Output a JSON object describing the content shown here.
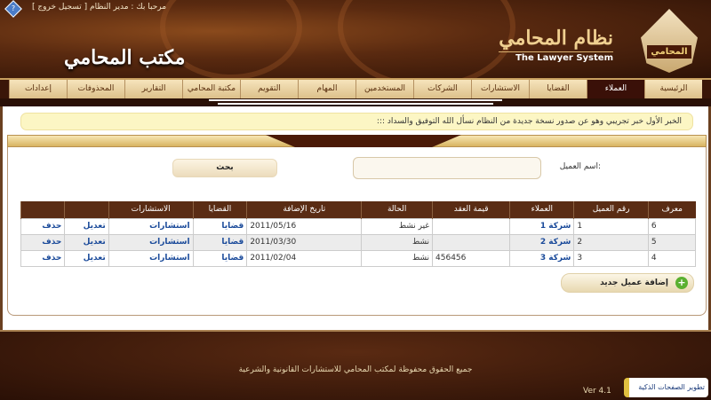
{
  "header": {
    "welcome": "مرحبا بك : مدير النظام [ تسجيل خروج ]",
    "help_icon": "question-icon",
    "office_title": "مكتب المحامي",
    "brand_ar": "نظام المحامي",
    "brand_en": "The Lawyer System",
    "logo_text": "المحامي"
  },
  "nav": {
    "active": "العملاء",
    "items": [
      "الرئيسية",
      "العملاء",
      "القضايا",
      "الاستشارات",
      "الشركات",
      "المستخدمين",
      "المهام",
      "التقويم",
      "مكتبة المحامي",
      "التقارير",
      "المحذوفات",
      "إعدادات"
    ]
  },
  "news": "الخبر الأول خبر تجريبي وهو عن صدور نسخة جديدة من النظام نسأل الله التوفيق والسداد :::",
  "search": {
    "label": "اسم العميل:",
    "value": "",
    "button": "بحث"
  },
  "table": {
    "headers": [
      "معرف",
      "رقم العميل",
      "العملاء",
      "قيمة العقد",
      "الحالة",
      "تاريخ الإضافة",
      "القضايا",
      "الاستشارات",
      "",
      ""
    ],
    "rows": [
      [
        "6",
        "1",
        "شركة 1",
        "",
        "غير نشط",
        "2011/05/16",
        "قضايا",
        "استشارات",
        "تعديل",
        "حذف"
      ],
      [
        "5",
        "2",
        "شركة 2",
        "",
        "نشط",
        "2011/03/30",
        "قضايا",
        "استشارات",
        "تعديل",
        "حذف"
      ],
      [
        "4",
        "3",
        "شركة 3",
        "456456",
        "نشط",
        "2011/02/04",
        "قضايا",
        "استشارات",
        "تعديل",
        "حذف"
      ]
    ]
  },
  "add_button": "إضافة عميل جديد",
  "footer": {
    "copyright": "جميع الحقوق محفوظة لمكتب المحامي للاستشارات القانونية والشرعية",
    "version": "Ver 4.1",
    "developer": "تطوير الصفحات الذكية"
  },
  "colors": {
    "header_bg": "#5a2a10",
    "nav_active": "#3a1008",
    "table_header": "#5a2c14",
    "link": "#1a4a9a",
    "news_bg": "#fcf6c4"
  }
}
